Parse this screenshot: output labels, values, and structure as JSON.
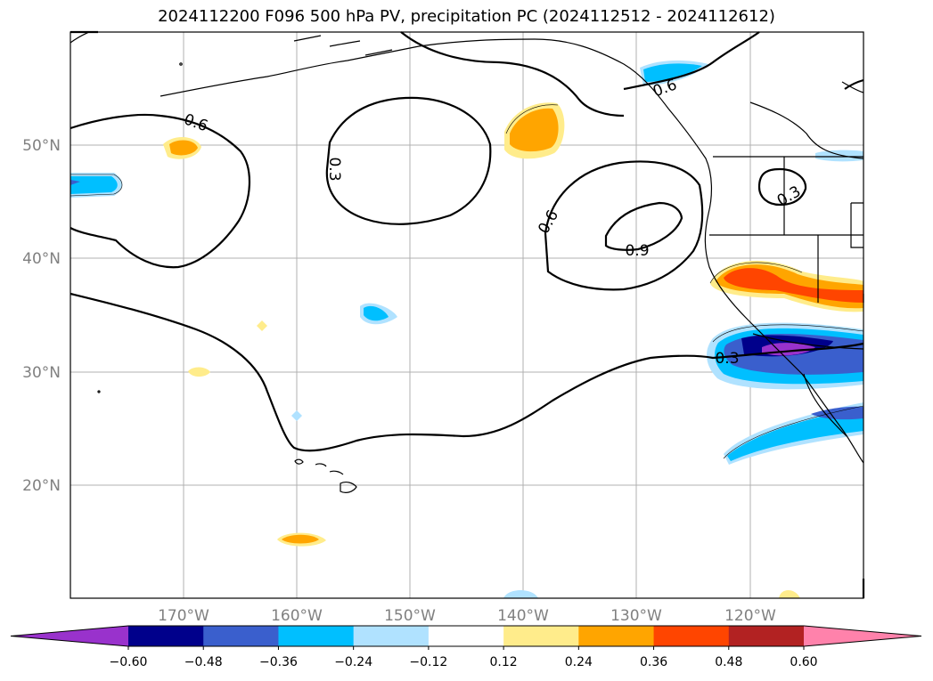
{
  "title": "2024112200 F096 500 hPa PV, precipitation PC (2024112512 - 2024112612)",
  "map": {
    "lat_labels": [
      "50°N",
      "40°N",
      "30°N",
      "20°N"
    ],
    "lon_labels": [
      "170°W",
      "160°W",
      "150°W",
      "140°W",
      "130°W",
      "120°W"
    ],
    "contour_labels": [
      "0.6",
      "0.3",
      "0.6",
      "0.9",
      "0.6",
      "0.3",
      "0.3"
    ],
    "gridlines": true
  },
  "colorbar": {
    "ticks": [
      "−0.60",
      "−0.48",
      "−0.36",
      "−0.24",
      "−0.12",
      "0.12",
      "0.24",
      "0.36",
      "0.48",
      "0.60"
    ],
    "colors": [
      "#9932cc",
      "#00008b",
      "#3a5fcd",
      "#00bfff",
      "#b0e2ff",
      "#ffffff",
      "#ffec8b",
      "#ffa500",
      "#ff4500",
      "#b22222",
      "#ff82ab"
    ],
    "extend": "both"
  }
}
